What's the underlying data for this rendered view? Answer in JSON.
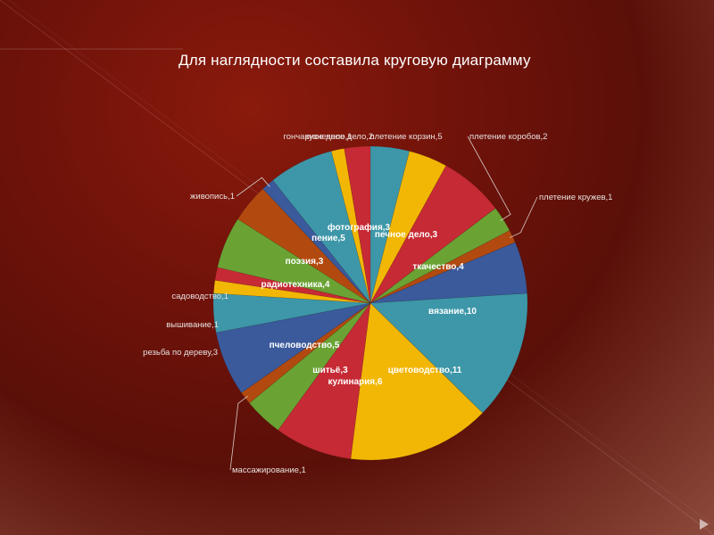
{
  "slide": {
    "title": "Для наглядности  составила круговую диаграмму"
  },
  "chart_data": {
    "type": "pie",
    "title": "",
    "label_format": "{name},{value}",
    "slices": [
      {
        "name": "фотография",
        "value": 3,
        "color": "#3d97a8"
      },
      {
        "name": "печное дело",
        "value": 3,
        "color": "#f2b705"
      },
      {
        "name": "плетение корзин",
        "value": 5,
        "color": "#c62a34"
      },
      {
        "name": "плетение коробов",
        "value": 2,
        "color": "#6aa334"
      },
      {
        "name": "плетение кружев",
        "value": 1,
        "color": "#b24a10"
      },
      {
        "name": "ткачество",
        "value": 4,
        "color": "#3a5a9c"
      },
      {
        "name": "вязание",
        "value": 10,
        "color": "#3d97a8"
      },
      {
        "name": "цветоводство",
        "value": 11,
        "color": "#f2b705"
      },
      {
        "name": "кулинария",
        "value": 6,
        "color": "#c62a34"
      },
      {
        "name": "шитьё",
        "value": 3,
        "color": "#6aa334"
      },
      {
        "name": "массажирование",
        "value": 1,
        "color": "#b24a10"
      },
      {
        "name": "пчеловодство",
        "value": 5,
        "color": "#3a5a9c"
      },
      {
        "name": "резьба по дереву",
        "value": 3,
        "color": "#3d97a8"
      },
      {
        "name": "вышивание",
        "value": 1,
        "color": "#f2b705"
      },
      {
        "name": "садоводство",
        "value": 1,
        "color": "#c62a34"
      },
      {
        "name": "радиотехника",
        "value": 4,
        "color": "#6aa334"
      },
      {
        "name": "поэзия",
        "value": 3,
        "color": "#b24a10"
      },
      {
        "name": "живопись",
        "value": 1,
        "color": "#3a5a9c"
      },
      {
        "name": "пение",
        "value": 5,
        "color": "#3d97a8"
      },
      {
        "name": "гончарное дело",
        "value": 1,
        "color": "#f2b705"
      },
      {
        "name": "кузнечное дело",
        "value": 2,
        "color": "#c62a34"
      }
    ]
  }
}
